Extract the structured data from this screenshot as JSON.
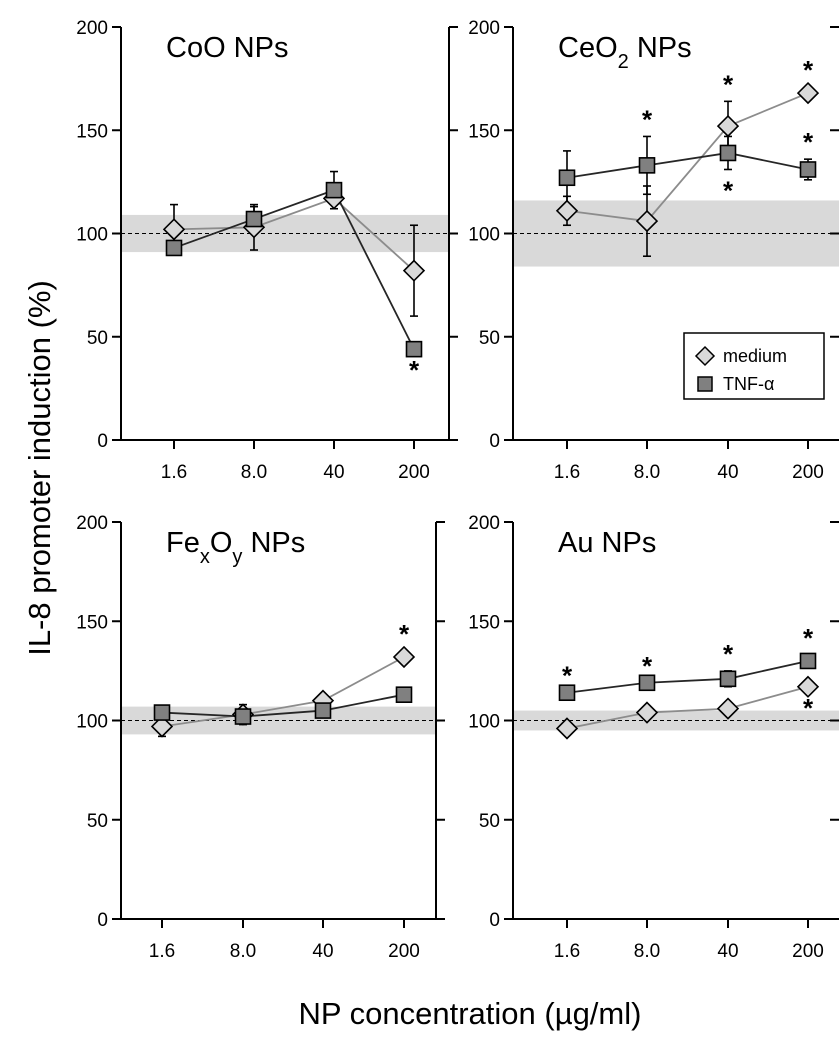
{
  "y_axis_label": "IL-8 promoter induction (%)",
  "x_axis_label": "NP concentration (µg/ml)",
  "legend": [
    {
      "label": "medium",
      "marker": "diamond",
      "fill": "#d9d9d9"
    },
    {
      "label": "TNF-α",
      "marker": "square",
      "fill": "#808080"
    }
  ],
  "colors": {
    "medium_line": "#8c8c8c",
    "tnf_line": "#262626",
    "medium_fill": "#d9d9d9",
    "tnf_fill": "#808080",
    "band": "#d9d9d9"
  },
  "chart_data": [
    {
      "type": "line",
      "title_parts": [
        {
          "t": "CoO NPs"
        }
      ],
      "categories": [
        "1.6",
        "8.0",
        "40",
        "200"
      ],
      "ylim": [
        0,
        200
      ],
      "yticks": [
        0,
        50,
        100,
        150,
        200
      ],
      "reference_line": 100,
      "control_band": [
        91,
        109
      ],
      "series": [
        {
          "name": "medium",
          "values": [
            102,
            103,
            117,
            82
          ],
          "errors": [
            12,
            11,
            0,
            22
          ]
        },
        {
          "name": "TNF-α",
          "values": [
            93,
            107,
            121,
            44
          ],
          "errors": [
            0,
            6,
            9,
            0
          ]
        }
      ],
      "annotations": [
        {
          "text": "*",
          "series": "TNF-α",
          "index": 3,
          "position": "below"
        }
      ]
    },
    {
      "type": "line",
      "title_parts": [
        {
          "t": "CeO"
        },
        {
          "t": "2",
          "sub": true
        },
        {
          "t": " NPs"
        }
      ],
      "categories": [
        "1.6",
        "8.0",
        "40",
        "200"
      ],
      "ylim": [
        0,
        200
      ],
      "yticks": [
        0,
        50,
        100,
        150,
        200
      ],
      "reference_line": 100,
      "control_band": [
        84,
        116
      ],
      "series": [
        {
          "name": "medium",
          "values": [
            111,
            106,
            152,
            168
          ],
          "errors": [
            7,
            17,
            12,
            3
          ]
        },
        {
          "name": "TNF-α",
          "values": [
            127,
            133,
            139,
            131
          ],
          "errors": [
            13,
            14,
            8,
            5
          ]
        }
      ],
      "annotations": [
        {
          "text": "*",
          "series": "TNF-α",
          "index": 1,
          "position": "above"
        },
        {
          "text": "*",
          "series": "medium",
          "index": 2,
          "position": "above"
        },
        {
          "text": "*",
          "series": "TNF-α",
          "index": 2,
          "position": "below"
        },
        {
          "text": "*",
          "series": "medium",
          "index": 3,
          "position": "above"
        },
        {
          "text": "*",
          "series": "TNF-α",
          "index": 3,
          "position": "above"
        }
      ],
      "legend_placement": "bottom-right"
    },
    {
      "type": "line",
      "title_parts": [
        {
          "t": "Fe"
        },
        {
          "t": "x",
          "sub": true
        },
        {
          "t": "O"
        },
        {
          "t": "y",
          "sub": true
        },
        {
          "t": " NPs"
        }
      ],
      "categories": [
        "1.6",
        "8.0",
        "40",
        "200"
      ],
      "ylim": [
        0,
        200
      ],
      "yticks": [
        0,
        50,
        100,
        150,
        200
      ],
      "reference_line": 100,
      "control_band": [
        93,
        107
      ],
      "series": [
        {
          "name": "medium",
          "values": [
            97,
            103,
            110,
            132
          ],
          "errors": [
            5,
            5,
            0,
            3
          ]
        },
        {
          "name": "TNF-α",
          "values": [
            104,
            102,
            105,
            113
          ],
          "errors": [
            0,
            4,
            0,
            0
          ]
        }
      ],
      "annotations": [
        {
          "text": "*",
          "series": "medium",
          "index": 3,
          "position": "above"
        }
      ]
    },
    {
      "type": "line",
      "title_parts": [
        {
          "t": "Au NPs"
        }
      ],
      "categories": [
        "1.6",
        "8.0",
        "40",
        "200"
      ],
      "ylim": [
        0,
        200
      ],
      "yticks": [
        0,
        50,
        100,
        150,
        200
      ],
      "reference_line": 100,
      "control_band": [
        95,
        105
      ],
      "series": [
        {
          "name": "medium",
          "values": [
            96,
            104,
            106,
            117
          ],
          "errors": [
            3,
            0,
            0,
            0
          ]
        },
        {
          "name": "TNF-α",
          "values": [
            114,
            119,
            121,
            130
          ],
          "errors": [
            0,
            0,
            4,
            3
          ]
        }
      ],
      "annotations": [
        {
          "text": "*",
          "series": "TNF-α",
          "index": 0,
          "position": "above"
        },
        {
          "text": "*",
          "series": "TNF-α",
          "index": 1,
          "position": "above"
        },
        {
          "text": "*",
          "series": "TNF-α",
          "index": 2,
          "position": "above"
        },
        {
          "text": "*",
          "series": "TNF-α",
          "index": 3,
          "position": "above"
        },
        {
          "text": "*",
          "series": "medium",
          "index": 3,
          "position": "below"
        }
      ]
    }
  ]
}
